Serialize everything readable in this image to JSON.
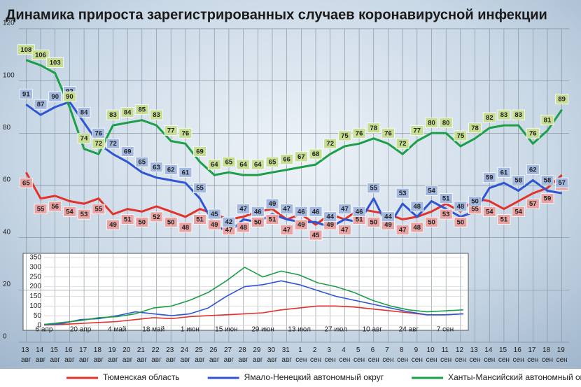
{
  "chart_data": [
    {
      "type": "line",
      "title": "Динамика прироста зарегистрированных случаев коронавирусной инфекции",
      "categories": [
        "13 авг",
        "14 авг",
        "15 авг",
        "16 авг",
        "17 авг",
        "18 авг",
        "19 авг",
        "20 авг",
        "21 авг",
        "22 авг",
        "23 авг",
        "24 авг",
        "25 авг",
        "26 авг",
        "27 авг",
        "28 авг",
        "29 авг",
        "30 авг",
        "31 авг",
        "1 сен",
        "2 сен",
        "3 сен",
        "4 сен",
        "5 сен",
        "6 сен",
        "7 сен",
        "8 сен",
        "9 сен",
        "10 сен",
        "11 сен",
        "12 сен",
        "13 сен",
        "14 сен",
        "15 сен",
        "16 сен",
        "17 сен",
        "18 сен",
        "19 сен"
      ],
      "series": [
        {
          "name": "Тюменская область",
          "color": "#e2322b",
          "label_color": "#e9a3a3",
          "values": [
            65,
            55,
            56,
            54,
            53,
            55,
            49,
            51,
            50,
            52,
            50,
            48,
            51,
            49,
            47,
            48,
            50,
            51,
            47,
            49,
            45,
            49,
            47,
            51,
            50,
            49,
            47,
            48,
            50,
            53,
            50,
            55,
            54,
            51,
            54,
            57,
            59,
            64
          ]
        },
        {
          "name": "Ямало-Ненецкий автономный округ",
          "color": "#2f55d4",
          "label_color": "#a3b9df",
          "values": [
            91,
            87,
            90,
            92,
            84,
            76,
            72,
            69,
            65,
            63,
            62,
            61,
            55,
            45,
            42,
            47,
            46,
            49,
            47,
            46,
            46,
            44,
            47,
            46,
            55,
            44,
            53,
            48,
            54,
            51,
            48,
            50,
            59,
            61,
            58,
            62,
            58,
            57
          ]
        },
        {
          "name": "Ханты-Мансийский автономный округ — Югра",
          "color": "#1d9e48",
          "label_color": "#c7dd92",
          "values": [
            108,
            106,
            103,
            90,
            74,
            72,
            83,
            84,
            85,
            83,
            77,
            76,
            69,
            64,
            65,
            64,
            64,
            65,
            66,
            67,
            68,
            72,
            75,
            76,
            78,
            76,
            72,
            77,
            80,
            80,
            75,
            78,
            82,
            83,
            83,
            76,
            81,
            89
          ]
        }
      ],
      "ylim": [
        0,
        120
      ],
      "yticks": [
        0,
        20,
        40,
        60,
        80,
        100,
        120
      ],
      "grid": true,
      "data_labels": true,
      "legend": "bottom"
    },
    {
      "type": "line",
      "categories": [
        "6 апр",
        null,
        "20 апр",
        null,
        "4 май",
        null,
        "18 май",
        null,
        "1 июн",
        null,
        "15 июн",
        null,
        "29 июн",
        null,
        "13 июл",
        null,
        "27 июл",
        null,
        "10 авг",
        null,
        "24 авг",
        null,
        "7 сен",
        null
      ],
      "series": [
        {
          "color": "#e2322b",
          "values": [
            2,
            5,
            10,
            15,
            20,
            30,
            40,
            35,
            45,
            50,
            55,
            60,
            65,
            80,
            90,
            100,
            100,
            95,
            85,
            75,
            65,
            55,
            55,
            60
          ]
        },
        {
          "color": "#2f55d4",
          "values": [
            3,
            10,
            30,
            35,
            50,
            70,
            60,
            50,
            60,
            90,
            150,
            200,
            210,
            230,
            210,
            180,
            150,
            130,
            110,
            90,
            70,
            55,
            55,
            60
          ]
        },
        {
          "color": "#1d9e48",
          "values": [
            5,
            15,
            25,
            40,
            45,
            60,
            90,
            100,
            130,
            170,
            230,
            300,
            250,
            280,
            260,
            220,
            200,
            170,
            130,
            100,
            80,
            70,
            75,
            80
          ]
        }
      ],
      "ylim": [
        0,
        350
      ],
      "yticks": [
        0,
        50,
        100,
        150,
        200,
        250,
        300,
        350
      ],
      "grid": true
    }
  ]
}
